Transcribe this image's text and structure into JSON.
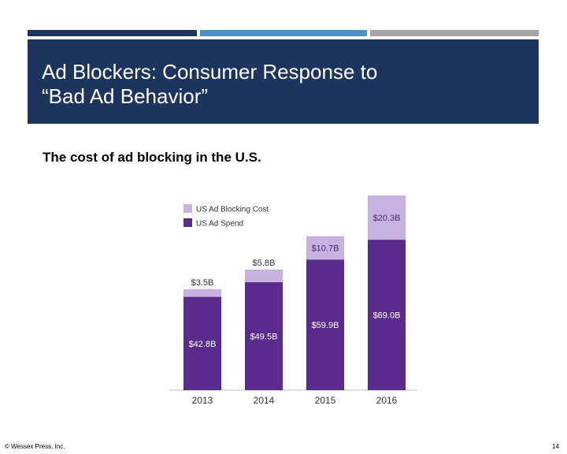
{
  "slide": {
    "title_lines": [
      "Ad Blockers: Consumer Response to",
      "“Bad Ad Behavior”"
    ],
    "subtitle": "The cost of ad blocking in the U.S.",
    "footer_left": "© Wessex Press, Inc.",
    "page_number": "14"
  },
  "colors": {
    "title_band": "#1c355e",
    "stripe_dark": "#1c355e",
    "stripe_blue": "#4c8ec5",
    "stripe_gray": "#a5a5a5",
    "ad_spend": "#5a2a8c",
    "blocking_cost": "#c7b3e0"
  },
  "chart_data": {
    "type": "bar",
    "stacked": true,
    "categories": [
      "2013",
      "2014",
      "2015",
      "2016"
    ],
    "series": [
      {
        "name": "US Ad Spend",
        "values": [
          42.8,
          49.5,
          59.9,
          69.0
        ],
        "labels": [
          "$42.8B",
          "$49.5B",
          "$59.9B",
          "$69.0B"
        ],
        "color": "#5a2a8c"
      },
      {
        "name": "US Ad Blocking Cost",
        "values": [
          3.5,
          5.8,
          10.7,
          20.3
        ],
        "labels": [
          "$3.5B",
          "$5.8B",
          "$10.7B",
          "$20.3B"
        ],
        "color": "#c7b3e0"
      }
    ],
    "ylim": [
      0,
      90
    ],
    "legend_position": "top-left",
    "grid": false,
    "title": "",
    "xlabel": "",
    "ylabel": ""
  }
}
